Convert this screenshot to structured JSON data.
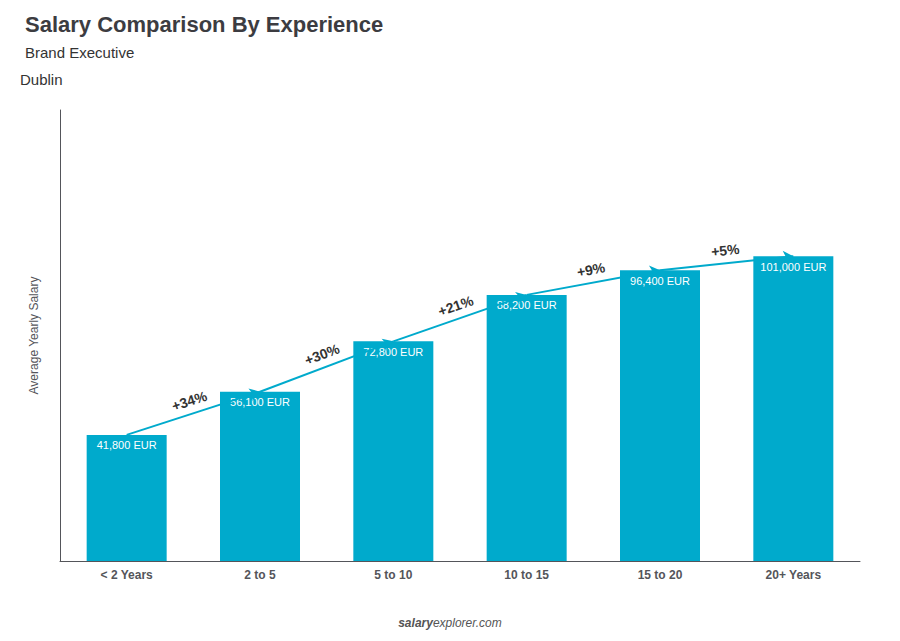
{
  "chart_data": {
    "type": "bar",
    "title": "Salary Comparison By Experience",
    "subtitle": "Brand Executive",
    "ylabel": "Average Yearly Salary",
    "categories": [
      "< 2 Years",
      "2 to 5",
      "5 to 10",
      "10 to 15",
      "15 to 20",
      "20+ Years"
    ],
    "values": [
      41800,
      56100,
      72800,
      88200,
      96400,
      101000
    ],
    "value_labels": [
      "41,800 EUR",
      "56,100 EUR",
      "72,800 EUR",
      "88,200 EUR",
      "96,400 EUR",
      "101,000 EUR"
    ],
    "data_labels": true,
    "color": "#00AACC",
    "ylim": [
      0,
      149480
    ],
    "grid": false,
    "tick_labels": "x",
    "annotations": [
      {
        "text": "+34%",
        "from": "< 2 Years",
        "to": "2 to 5"
      },
      {
        "text": "+30%",
        "from": "2 to 5",
        "to": "5 to 10"
      },
      {
        "text": "+21%",
        "from": "5 to 10",
        "to": "10 to 15"
      },
      {
        "text": "+9%",
        "from": "10 to 15",
        "to": "15 to 20"
      },
      {
        "text": "+5%",
        "from": "15 to 20",
        "to": "20+ Years"
      },
      {
        "text": "Dublin"
      },
      {
        "text": "salary"
      },
      {
        "text": "explorer.com"
      }
    ]
  }
}
